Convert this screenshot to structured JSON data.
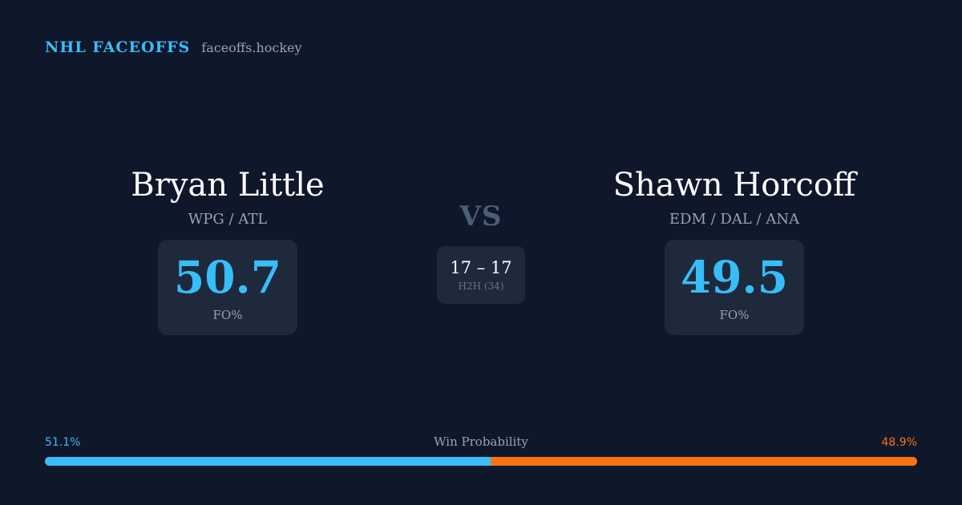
{
  "brand": {
    "name": "NHL FACEOFFS",
    "site": "faceoffs.hockey"
  },
  "player_left": {
    "name": "Bryan Little",
    "teams": "WPG / ATL",
    "fo_value": "50.7",
    "fo_label": "FO%"
  },
  "player_right": {
    "name": "Shawn Horcoff",
    "teams": "EDM / DAL / ANA",
    "fo_value": "49.5",
    "fo_label": "FO%"
  },
  "matchup": {
    "vs": "VS",
    "h2h_score": "17 – 17",
    "h2h_label": "H2H (34)"
  },
  "win_probability": {
    "title": "Win Probability",
    "left_label": "51.1%",
    "right_label": "48.9%",
    "left_value": 51.1,
    "right_value": 48.9
  },
  "colors": {
    "background": "#0f172a",
    "card": "#1e293b",
    "accent_blue": "#38bdf8",
    "accent_orange": "#f97316",
    "muted": "#94a3b8"
  }
}
